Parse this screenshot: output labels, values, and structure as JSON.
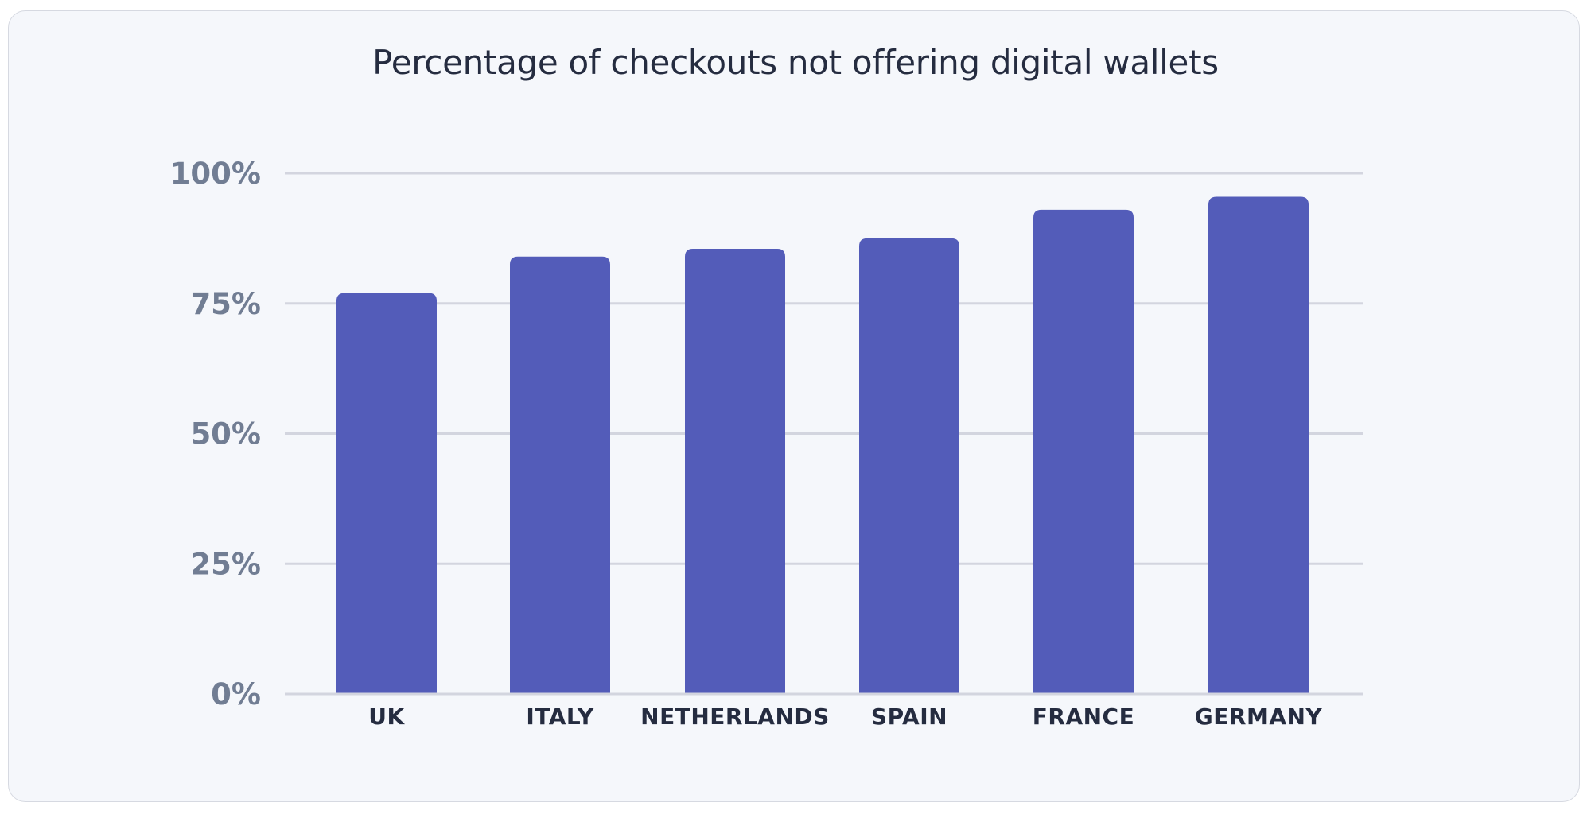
{
  "chart_data": {
    "type": "bar",
    "title": "Percentage of checkouts not offering digital wallets",
    "categories": [
      "UK",
      "ITALY",
      "NETHERLANDS",
      "SPAIN",
      "FRANCE",
      "GERMANY"
    ],
    "values": [
      77,
      84,
      85.5,
      87.5,
      93,
      95.5
    ],
    "ylim": [
      0,
      100
    ],
    "yticks": [
      0,
      25,
      50,
      75,
      100
    ],
    "ytick_labels": [
      "0%",
      "25%",
      "50%",
      "75%",
      "100%"
    ],
    "xlabel": "",
    "ylabel": "",
    "grid": true,
    "colors": {
      "bar": "#535cb9",
      "grid": "#d3d5df",
      "background": "#f5f7fb"
    }
  }
}
